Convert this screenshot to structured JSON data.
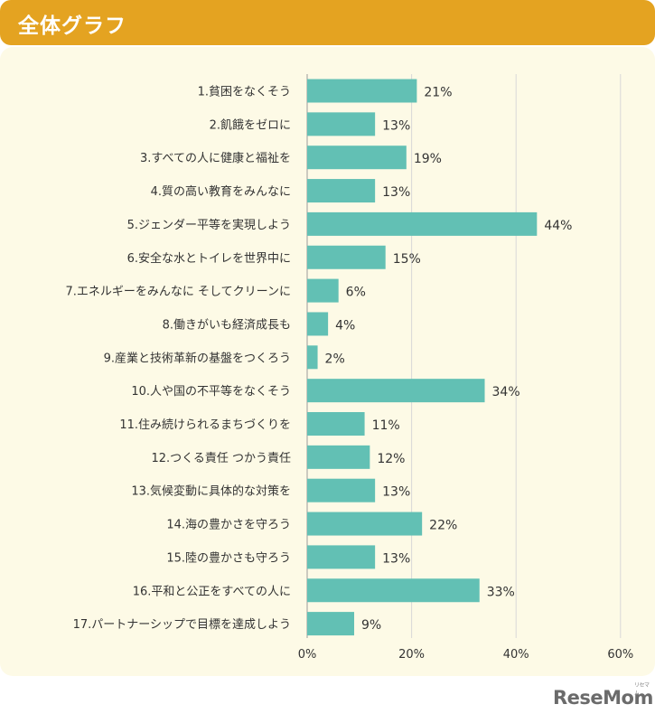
{
  "header": {
    "title": "全体グラフ"
  },
  "logo": {
    "text": "ReseMom",
    "small": "リセマム"
  },
  "colors": {
    "bar": "#62c0b4",
    "header": "#e4a321",
    "panel": "#fdfae6",
    "grid": "#d8d8d8"
  },
  "chart_data": {
    "type": "bar",
    "orientation": "horizontal",
    "categories": [
      "1.貧困をなくそう",
      "2.飢餓をゼロに",
      "3.すべての人に健康と福祉を",
      "4.質の高い教育をみんなに",
      "5.ジェンダー平等を実現しよう",
      "6.安全な水とトイレを世界中に",
      "7.エネルギーをみんなに そしてクリーンに",
      "8.働きがいも経済成長も",
      "9.産業と技術革新の基盤をつくろう",
      "10.人や国の不平等をなくそう",
      "11.住み続けられるまちづくりを",
      "12.つくる責任 つかう責任",
      "13.気候変動に具体的な対策を",
      "14.海の豊かさを守ろう",
      "15.陸の豊かさも守ろう",
      "16.平和と公正をすべての人に",
      "17.パートナーシップで目標を達成しよう"
    ],
    "values": [
      21,
      13,
      19,
      13,
      44,
      15,
      6,
      4,
      2,
      34,
      11,
      12,
      13,
      22,
      13,
      33,
      9
    ],
    "value_labels": [
      "21%",
      "13%",
      "19%",
      "13%",
      "44%",
      "15%",
      "6%",
      "4%",
      "2%",
      "34%",
      "11%",
      "12%",
      "13%",
      "22%",
      "13%",
      "33%",
      "9%"
    ],
    "xlim": [
      0,
      60
    ],
    "xticks": [
      0,
      20,
      40,
      60
    ],
    "xtick_labels": [
      "0%",
      "20%",
      "40%",
      "60%"
    ],
    "grid": true
  }
}
